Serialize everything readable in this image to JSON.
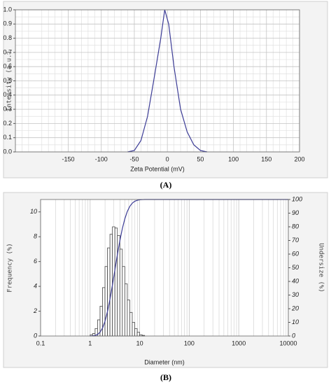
{
  "chart_data": [
    {
      "type": "line",
      "panel_label": "(A)",
      "xlabel": "Zeta Potential (mV)",
      "ylabel": "Intensity (a.u.)",
      "x": [
        -60,
        -50,
        -40,
        -30,
        -20,
        -10,
        -4,
        2,
        10,
        20,
        30,
        40,
        50,
        60
      ],
      "values": [
        0,
        0.01,
        0.08,
        0.25,
        0.52,
        0.8,
        1.0,
        0.9,
        0.6,
        0.3,
        0.14,
        0.05,
        0.01,
        0
      ],
      "color": "#3c3c96",
      "xlim": [
        -230,
        200
      ],
      "xticks": [
        -150,
        -100,
        -50,
        0,
        50,
        100,
        150,
        200
      ],
      "ylim": [
        0,
        1
      ],
      "yticks": [
        {
          "value": 0,
          "label": "0.0"
        },
        0.1,
        0.2,
        0.3,
        0.4,
        0.5,
        0.6,
        0.7,
        0.8,
        0.9,
        {
          "value": 1,
          "label": "1.0"
        }
      ],
      "grid": true
    },
    {
      "type": "histogram",
      "panel_label": "(B)",
      "xlabel": "Diameter (nm)",
      "ylabel": "Frequency (%)",
      "y2label": "Undersize (%)",
      "xscale": "log",
      "bins": [
        1,
        1.122,
        1.259,
        1.413,
        1.585,
        1.778,
        1.995,
        2.239,
        2.512,
        2.818,
        3.162,
        3.548,
        3.981,
        4.467,
        5.012,
        5.623,
        6.31,
        7.079,
        7.943,
        8.913,
        10,
        11.22,
        12.589
      ],
      "values": [
        0.1,
        0.2,
        0.6,
        1.3,
        2.4,
        3.9,
        5.6,
        7.1,
        8.2,
        8.8,
        8.7,
        8.1,
        7.0,
        5.6,
        4.2,
        2.9,
        1.9,
        1.1,
        0.6,
        0.3,
        0.1,
        0.05
      ],
      "color": "#444444",
      "line": {
        "axis": "y2",
        "color": "#3c3c96",
        "x": [
          1,
          1.122,
          1.259,
          1.413,
          1.585,
          1.778,
          1.995,
          2.239,
          2.512,
          2.818,
          3.162,
          3.548,
          3.981,
          4.467,
          5.012,
          5.623,
          6.31,
          7.079,
          7.943,
          8.913,
          10,
          11.22,
          12.589,
          100,
          1000,
          10000
        ],
        "values": [
          0,
          0.1,
          0.4,
          1.1,
          2.8,
          5.8,
          10.8,
          17.9,
          26.9,
          37.3,
          48.5,
          59.6,
          69.8,
          78.7,
          85.8,
          91.2,
          94.9,
          97.3,
          98.7,
          99.4,
          99.8,
          99.9,
          100,
          100,
          100,
          100
        ]
      },
      "xlim": [
        0.1,
        10000
      ],
      "xticks": [
        0.1,
        1,
        10,
        100,
        1000,
        10000
      ],
      "ylim": [
        0,
        11
      ],
      "yticks": [
        0,
        2,
        4,
        6,
        8,
        10
      ],
      "y2lim": [
        0,
        100
      ],
      "y2ticks": [
        0,
        10,
        20,
        30,
        40,
        50,
        60,
        70,
        80,
        90,
        100
      ],
      "grid": true
    }
  ]
}
